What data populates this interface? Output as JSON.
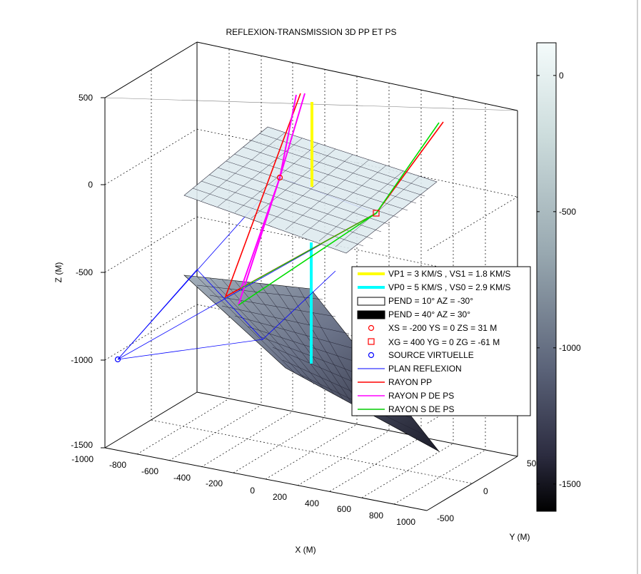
{
  "chart_data": {
    "type": "3d-surface-plot",
    "title": "REFLEXION-TRANSMISSION 3D PP ET PS",
    "xlabel": "X (M)",
    "ylabel": "Y (M)",
    "zlabel": "Z (M)",
    "xlim": [
      -1000,
      1000
    ],
    "ylim": [
      -500,
      500
    ],
    "zlim": [
      -1500,
      500
    ],
    "x_ticks": [
      "-1000",
      "-800",
      "-600",
      "-400",
      "-200",
      "0",
      "200",
      "400",
      "600",
      "800",
      "1000"
    ],
    "y_ticks": [
      "-500",
      "0",
      "500"
    ],
    "z_ticks": [
      "500",
      "0",
      "-500",
      "-1000",
      "-1500"
    ],
    "grid": true,
    "colormap": "bone",
    "colorbar": {
      "ticks": [
        "0",
        "-500",
        "-1000",
        "-1500"
      ],
      "range": [
        -1600,
        120
      ]
    },
    "planes": [
      {
        "name": "PEND = 10° AZ = -30°",
        "dip_deg": 10,
        "azimuth_deg": -30,
        "z_at_origin": 0
      },
      {
        "name": "PEND = 40° AZ = 30°",
        "dip_deg": 40,
        "azimuth_deg": 30,
        "z_at_origin": -900
      }
    ],
    "points": {
      "source": {
        "label": "XS = -200 YS = 0 ZS = 31 M",
        "x": -200,
        "y": 0,
        "z": 31
      },
      "receiver": {
        "label": "XG = 400 YG = 0 ZG = -61 M",
        "x": 400,
        "y": 0,
        "z": -61
      },
      "virtual_source": {
        "label": "SOURCE VIRTUELLE",
        "x": -1000,
        "y": 0,
        "z": -1000
      }
    },
    "legend": {
      "placement": "center-right",
      "entries": [
        {
          "label": "VP1 = 3 KM/S , VS1 = 1.8 KM/S",
          "color": "#ffff00",
          "kind": "thick-line"
        },
        {
          "label": "VP0 = 5 KM/S , VS0 = 2.9 KM/S",
          "color": "#00ffff",
          "kind": "thick-line"
        },
        {
          "label": "PEND = 10° AZ = -30°",
          "color": "#ffffff",
          "kind": "patch"
        },
        {
          "label": "PEND = 40° AZ = 30°",
          "color": "#000000",
          "kind": "patch"
        },
        {
          "label": "XS = -200 YS = 0 ZS = 31 M",
          "color": "#ff0000",
          "kind": "circle"
        },
        {
          "label": "XG = 400 YG = 0 ZG = -61 M",
          "color": "#ff0000",
          "kind": "square"
        },
        {
          "label": "SOURCE VIRTUELLE",
          "color": "#0000ff",
          "kind": "circle"
        },
        {
          "label": "PLAN REFLEXION",
          "color": "#0000ff",
          "kind": "line"
        },
        {
          "label": "RAYON PP",
          "color": "#ff0000",
          "kind": "line"
        },
        {
          "label": "RAYON P DE PS",
          "color": "#ff00ff",
          "kind": "line"
        },
        {
          "label": "RAYON S DE PS",
          "color": "#00cc00",
          "kind": "line"
        }
      ]
    }
  }
}
